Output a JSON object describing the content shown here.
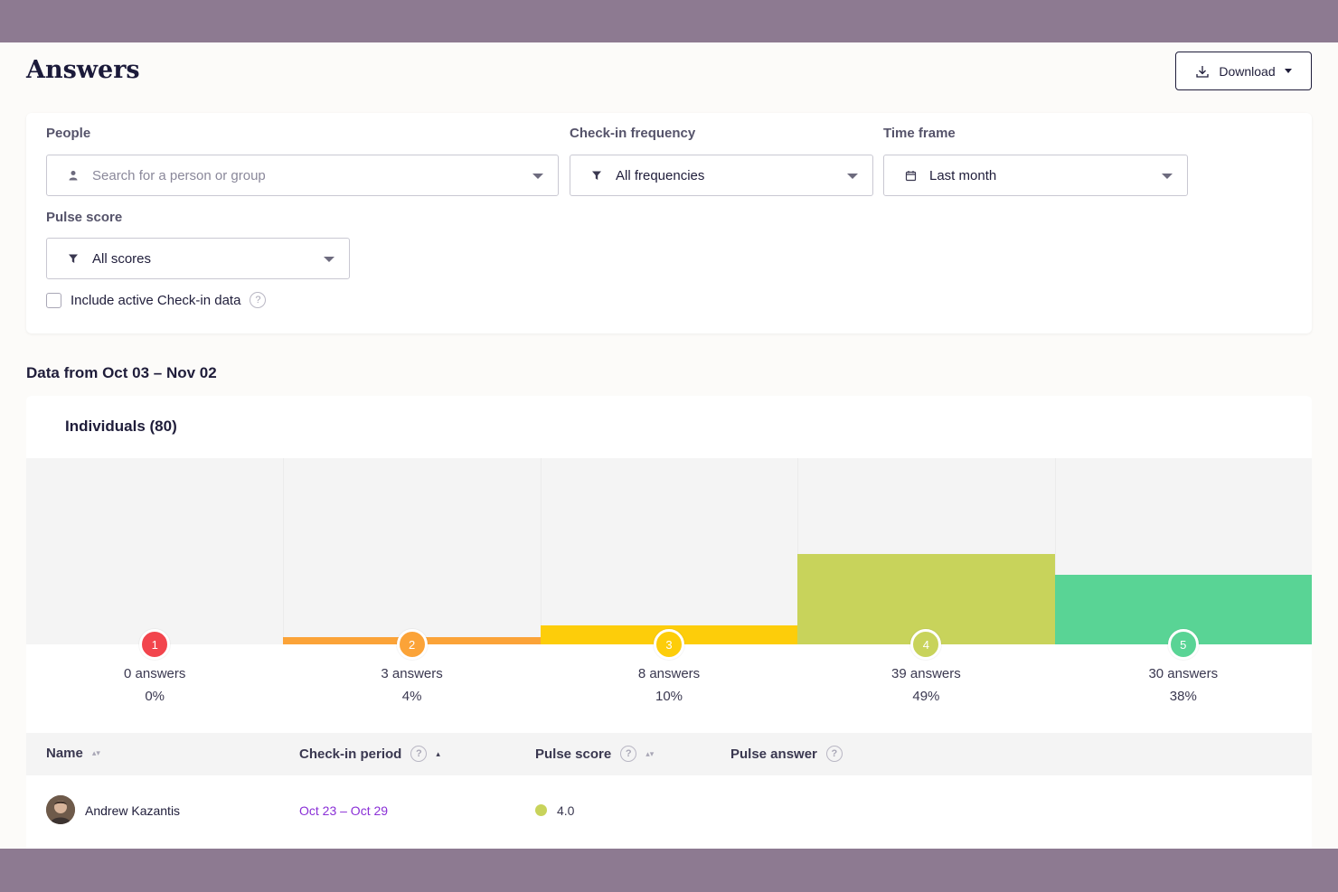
{
  "page": {
    "title": "Answers",
    "download_label": "Download"
  },
  "filters": {
    "people": {
      "label": "People",
      "placeholder": "Search for a person or group"
    },
    "frequency": {
      "label": "Check-in frequency",
      "value": "All frequencies"
    },
    "timeframe": {
      "label": "Time frame",
      "value": "Last month"
    },
    "pulse": {
      "label": "Pulse score",
      "value": "All scores"
    },
    "include_active": {
      "label": "Include active Check-in data",
      "checked": false
    }
  },
  "range_title": "Data from Oct 03 – Nov 02",
  "individuals_title": "Individuals (80)",
  "chart_data": {
    "type": "bar",
    "categories": [
      "1",
      "2",
      "3",
      "4",
      "5"
    ],
    "values": [
      0,
      3,
      8,
      39,
      30
    ],
    "percent_labels": [
      "0%",
      "4%",
      "10%",
      "49%",
      "38%"
    ],
    "answer_labels": [
      "0 answers",
      "3 answers",
      "8 answers",
      "39 answers",
      "30 answers"
    ],
    "colors": [
      "#f2454d",
      "#fba338",
      "#fdcd0a",
      "#c8d35b",
      "#59d495"
    ],
    "ylim": [
      0,
      80
    ]
  },
  "table": {
    "headers": {
      "name": "Name",
      "period": "Check-in period",
      "score": "Pulse score",
      "answer": "Pulse answer"
    },
    "rows": [
      {
        "name": "Andrew Kazantis",
        "period": "Oct 23 – Oct 29",
        "score": "4.0",
        "score_color": "#c8d35b"
      }
    ]
  }
}
